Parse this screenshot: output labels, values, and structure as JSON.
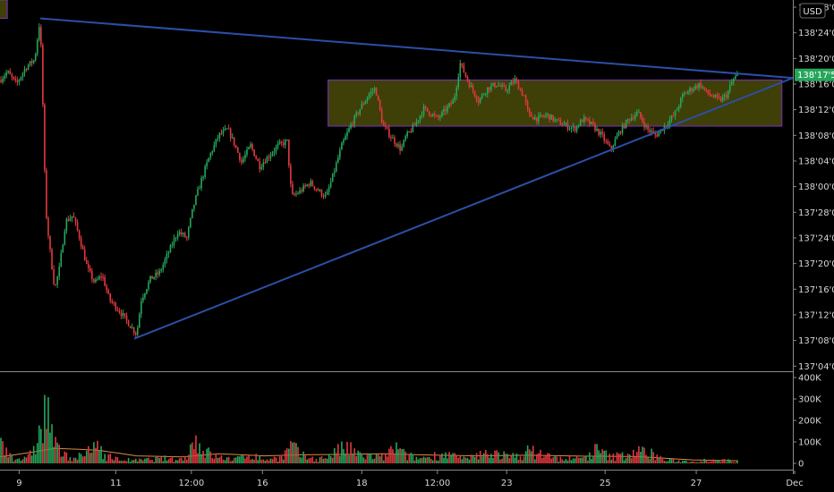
{
  "currency_button": "USD",
  "chart_data": {
    "type": "candlestick",
    "price_axis": {
      "min": 137.1,
      "max": 138.91,
      "ticks": [
        {
          "value": 138.875,
          "label": "138'28'0"
        },
        {
          "value": 138.75,
          "label": "138'24'0"
        },
        {
          "value": 138.625,
          "label": "138'20'0"
        },
        {
          "value": 138.5,
          "label": "138'16'0"
        },
        {
          "value": 138.375,
          "label": "138'12'0"
        },
        {
          "value": 138.25,
          "label": "138'08'0"
        },
        {
          "value": 138.125,
          "label": "138'04'0"
        },
        {
          "value": 138.0,
          "label": "138'00'0"
        },
        {
          "value": 137.875,
          "label": "137'28'0"
        },
        {
          "value": 137.75,
          "label": "137'24'0"
        },
        {
          "value": 137.625,
          "label": "137'20'0"
        },
        {
          "value": 137.5,
          "label": "137'16'0"
        },
        {
          "value": 137.375,
          "label": "137'12'0"
        },
        {
          "value": 137.25,
          "label": "137'08'0"
        },
        {
          "value": 137.125,
          "label": "137'04'0"
        }
      ]
    },
    "volume_axis": {
      "min": 0,
      "max": 400000,
      "ticks": [
        {
          "value": 0,
          "label": "0"
        },
        {
          "value": 100000,
          "label": "100K"
        },
        {
          "value": 200000,
          "label": "200K"
        },
        {
          "value": 300000,
          "label": "300K"
        },
        {
          "value": 400000,
          "label": "400K"
        }
      ]
    },
    "time_axis": {
      "min": 0,
      "max": 870,
      "labels": [
        {
          "t": 21,
          "label": "9"
        },
        {
          "t": 127,
          "label": "11"
        },
        {
          "t": 210,
          "label": "12:00"
        },
        {
          "t": 288,
          "label": "16"
        },
        {
          "t": 397,
          "label": "18"
        },
        {
          "t": 480,
          "label": "12:00"
        },
        {
          "t": 556,
          "label": "23"
        },
        {
          "t": 664,
          "label": "25"
        },
        {
          "t": 764,
          "label": "27"
        },
        {
          "t": 872,
          "label": "Dec"
        }
      ]
    },
    "price_anchors": [
      [
        0,
        138.52
      ],
      [
        8,
        138.56
      ],
      [
        18,
        138.5
      ],
      [
        28,
        138.58
      ],
      [
        38,
        138.62
      ],
      [
        44,
        138.82
      ],
      [
        47,
        138.4
      ],
      [
        50,
        137.9
      ],
      [
        54,
        137.72
      ],
      [
        60,
        137.5
      ],
      [
        65,
        137.6
      ],
      [
        72,
        137.83
      ],
      [
        80,
        137.86
      ],
      [
        88,
        137.74
      ],
      [
        96,
        137.6
      ],
      [
        104,
        137.53
      ],
      [
        112,
        137.57
      ],
      [
        120,
        137.45
      ],
      [
        130,
        137.4
      ],
      [
        140,
        137.34
      ],
      [
        150,
        137.28
      ],
      [
        155,
        137.45
      ],
      [
        165,
        137.55
      ],
      [
        175,
        137.58
      ],
      [
        185,
        137.68
      ],
      [
        195,
        137.78
      ],
      [
        205,
        137.75
      ],
      [
        212,
        137.9
      ],
      [
        220,
        138.02
      ],
      [
        230,
        138.15
      ],
      [
        240,
        138.25
      ],
      [
        250,
        138.28
      ],
      [
        258,
        138.2
      ],
      [
        265,
        138.12
      ],
      [
        275,
        138.2
      ],
      [
        285,
        138.1
      ],
      [
        295,
        138.15
      ],
      [
        305,
        138.2
      ],
      [
        315,
        138.22
      ],
      [
        320,
        137.95
      ],
      [
        330,
        137.98
      ],
      [
        340,
        138.02
      ],
      [
        352,
        137.97
      ],
      [
        358,
        137.95
      ],
      [
        365,
        138.05
      ],
      [
        375,
        138.2
      ],
      [
        385,
        138.3
      ],
      [
        395,
        138.38
      ],
      [
        405,
        138.45
      ],
      [
        412,
        138.48
      ],
      [
        420,
        138.3
      ],
      [
        428,
        138.25
      ],
      [
        440,
        138.18
      ],
      [
        445,
        138.24
      ],
      [
        455,
        138.3
      ],
      [
        465,
        138.38
      ],
      [
        472,
        138.36
      ],
      [
        480,
        138.33
      ],
      [
        490,
        138.38
      ],
      [
        498,
        138.42
      ],
      [
        505,
        138.6
      ],
      [
        515,
        138.5
      ],
      [
        525,
        138.42
      ],
      [
        535,
        138.48
      ],
      [
        545,
        138.5
      ],
      [
        555,
        138.47
      ],
      [
        565,
        138.52
      ],
      [
        575,
        138.44
      ],
      [
        580,
        138.35
      ],
      [
        590,
        138.33
      ],
      [
        600,
        138.35
      ],
      [
        610,
        138.32
      ],
      [
        620,
        138.3
      ],
      [
        630,
        138.28
      ],
      [
        640,
        138.33
      ],
      [
        650,
        138.3
      ],
      [
        660,
        138.25
      ],
      [
        670,
        138.18
      ],
      [
        680,
        138.27
      ],
      [
        690,
        138.33
      ],
      [
        700,
        138.36
      ],
      [
        710,
        138.28
      ],
      [
        720,
        138.25
      ],
      [
        730,
        138.3
      ],
      [
        740,
        138.35
      ],
      [
        750,
        138.45
      ],
      [
        760,
        138.48
      ],
      [
        768,
        138.5
      ],
      [
        775,
        138.46
      ],
      [
        782,
        138.44
      ],
      [
        790,
        138.42
      ],
      [
        798,
        138.45
      ],
      [
        802,
        138.5
      ],
      [
        806,
        138.53
      ],
      [
        810,
        138.545
      ]
    ],
    "volume_anchors": [
      [
        0,
        110000
      ],
      [
        15,
        30000
      ],
      [
        30,
        20000
      ],
      [
        45,
        160000
      ],
      [
        50,
        260000
      ],
      [
        55,
        230000
      ],
      [
        60,
        90000
      ],
      [
        70,
        40000
      ],
      [
        85,
        30000
      ],
      [
        100,
        60000
      ],
      [
        108,
        110000
      ],
      [
        115,
        40000
      ],
      [
        130,
        20000
      ],
      [
        150,
        15000
      ],
      [
        180,
        25000
      ],
      [
        200,
        20000
      ],
      [
        215,
        120000
      ],
      [
        225,
        60000
      ],
      [
        240,
        30000
      ],
      [
        260,
        20000
      ],
      [
        270,
        50000
      ],
      [
        290,
        20000
      ],
      [
        310,
        30000
      ],
      [
        320,
        90000
      ],
      [
        330,
        40000
      ],
      [
        350,
        20000
      ],
      [
        380,
        80000
      ],
      [
        395,
        40000
      ],
      [
        420,
        30000
      ],
      [
        435,
        80000
      ],
      [
        445,
        40000
      ],
      [
        460,
        25000
      ],
      [
        490,
        50000
      ],
      [
        510,
        20000
      ],
      [
        540,
        60000
      ],
      [
        560,
        30000
      ],
      [
        580,
        60000
      ],
      [
        595,
        50000
      ],
      [
        610,
        25000
      ],
      [
        640,
        25000
      ],
      [
        655,
        70000
      ],
      [
        670,
        30000
      ],
      [
        700,
        60000
      ],
      [
        715,
        50000
      ],
      [
        730,
        15000
      ],
      [
        760,
        10000
      ],
      [
        780,
        20000
      ],
      [
        810,
        10000
      ]
    ],
    "volume_ma_anchors": [
      [
        0,
        30000
      ],
      [
        40,
        55000
      ],
      [
        60,
        70000
      ],
      [
        90,
        65000
      ],
      [
        110,
        60000
      ],
      [
        150,
        35000
      ],
      [
        200,
        30000
      ],
      [
        240,
        45000
      ],
      [
        290,
        35000
      ],
      [
        330,
        40000
      ],
      [
        380,
        42000
      ],
      [
        420,
        45000
      ],
      [
        460,
        40000
      ],
      [
        520,
        35000
      ],
      [
        580,
        38000
      ],
      [
        640,
        34000
      ],
      [
        700,
        32000
      ],
      [
        760,
        16000
      ],
      [
        810,
        12000
      ]
    ],
    "current_price": {
      "value": 138.545,
      "label": "138'17'5"
    },
    "annotations": {
      "triangle_upper": [
        [
          45,
          138.82
        ],
        [
          870,
          138.53
        ]
      ],
      "triangle_lower": [
        [
          148,
          137.26
        ],
        [
          870,
          138.53
        ]
      ],
      "range_box": {
        "t_start": 360,
        "t_end": 858,
        "price_top": 138.52,
        "price_bottom": 138.295
      },
      "corner_box": {
        "t_start": 0,
        "t_end": 8,
        "price_top": 138.91,
        "price_bottom": 138.82
      }
    },
    "colors": {
      "up": "#26a65b",
      "down": "#e0393e",
      "trendline": "#2b4fa8",
      "range_box_fill": "#3f3f08",
      "range_box_border": "#7b2fbf",
      "current_price_bg": "#26a65b",
      "volume_ma": "#e08a3c"
    }
  }
}
